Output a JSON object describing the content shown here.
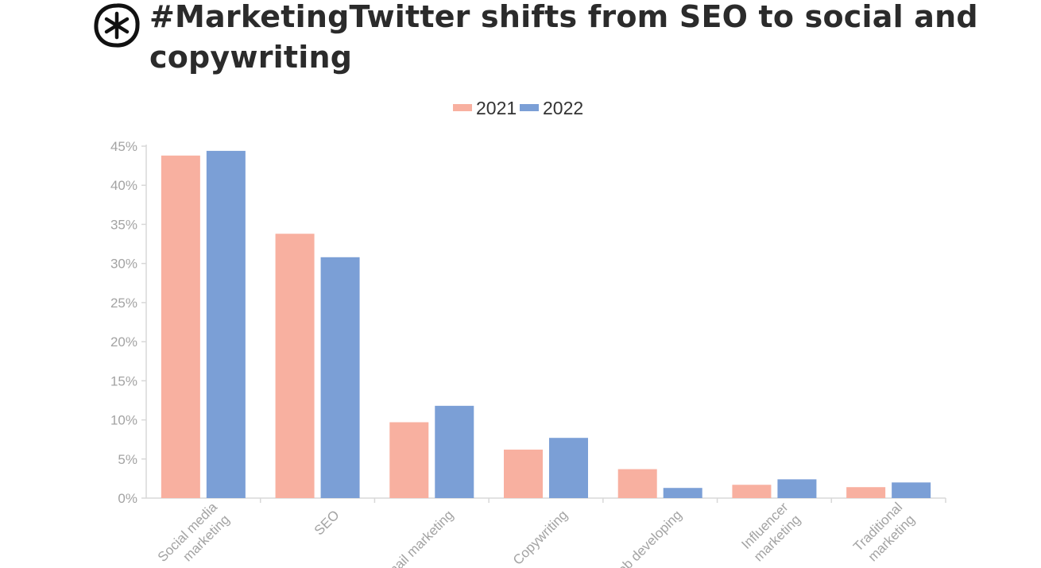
{
  "header": {
    "title": "#MarketingTwitter shifts from SEO to social and copywriting"
  },
  "brand": {
    "logo_icon": "asterisk-circle-logo-icon"
  },
  "colors": {
    "series_2021": "#f8b0a0",
    "series_2022": "#7b9fd6",
    "axis": "#d8d8d8",
    "tick_text": "#a3a3a3",
    "title_text": "#2b2b2b"
  },
  "chart_data": {
    "type": "bar",
    "title": "#MarketingTwitter shifts from SEO to social and copywriting",
    "xlabel": "",
    "ylabel": "",
    "ylim": [
      0,
      45
    ],
    "y_ticks": [
      "0%",
      "5%",
      "10%",
      "15%",
      "20%",
      "25%",
      "30%",
      "35%",
      "40%",
      "45%"
    ],
    "categories": [
      [
        "Social media",
        "marketing"
      ],
      [
        "SEO"
      ],
      [
        "Email marketing"
      ],
      [
        "Copywriting"
      ],
      [
        "Web developing"
      ],
      [
        "Influencer",
        "marketing"
      ],
      [
        "Traditional",
        "marketing"
      ]
    ],
    "series": [
      {
        "name": "2021",
        "values": [
          43.8,
          33.8,
          9.7,
          6.2,
          3.7,
          1.7,
          1.4
        ]
      },
      {
        "name": "2022",
        "values": [
          44.4,
          30.8,
          11.8,
          7.7,
          1.3,
          2.4,
          2.0
        ]
      }
    ],
    "legend_position": "top-center",
    "grid": false
  }
}
